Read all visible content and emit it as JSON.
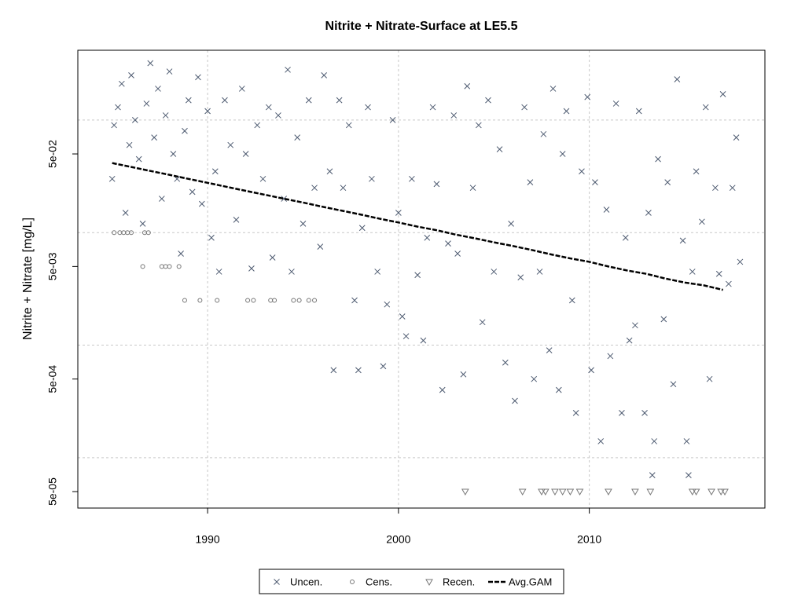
{
  "chart_data": {
    "type": "scatter",
    "title": "Nitrite + Nitrate-Surface at LE5.5",
    "y_label": "Nitrite + Nitrate [mg/L]",
    "log_y": true,
    "xlim": [
      1983.2,
      2019.2
    ],
    "ylim": [
      3.57e-05,
      0.417
    ],
    "xticks": [
      1990,
      2000,
      2010
    ],
    "yticks": [
      {
        "value": 5e-05,
        "label": "5e-05"
      },
      {
        "value": 0.0005,
        "label": "5e-04"
      },
      {
        "value": 0.005,
        "label": "5e-03"
      },
      {
        "value": 0.05,
        "label": "5e-02"
      }
    ],
    "ygrid": [
      0.0001,
      0.001,
      0.01,
      0.1
    ],
    "grid": true,
    "legend_position": "bottom",
    "series": [
      {
        "name": "Uncen.",
        "marker": "x",
        "color": "#4d5a70",
        "x": [
          1985.0,
          1985.1,
          1985.3,
          1985.5,
          1985.7,
          1985.9,
          1986.0,
          1986.2,
          1986.4,
          1986.6,
          1986.8,
          1987.0,
          1987.2,
          1987.4,
          1987.6,
          1987.8,
          1988.0,
          1988.2,
          1988.4,
          1988.6,
          1988.8,
          1989.0,
          1989.2,
          1989.5,
          1989.7,
          1990.0,
          1990.2,
          1990.4,
          1990.6,
          1990.9,
          1991.2,
          1991.5,
          1991.8,
          1992.0,
          1992.3,
          1992.6,
          1992.9,
          1993.2,
          1993.4,
          1993.7,
          1994.0,
          1994.2,
          1994.4,
          1994.7,
          1995.0,
          1995.3,
          1995.6,
          1995.9,
          1996.1,
          1996.4,
          1996.6,
          1996.9,
          1997.1,
          1997.4,
          1997.7,
          1997.9,
          1998.1,
          1998.4,
          1998.6,
          1998.9,
          1999.2,
          1999.4,
          1999.7,
          2000.0,
          2000.2,
          2000.4,
          2000.7,
          2001.0,
          2001.3,
          2001.5,
          2001.8,
          2002.0,
          2002.3,
          2002.6,
          2002.9,
          2003.1,
          2003.4,
          2003.6,
          2003.9,
          2004.2,
          2004.4,
          2004.7,
          2005.0,
          2005.3,
          2005.6,
          2005.9,
          2006.1,
          2006.4,
          2006.6,
          2006.9,
          2007.1,
          2007.4,
          2007.6,
          2007.9,
          2008.1,
          2008.4,
          2008.6,
          2008.8,
          2009.1,
          2009.3,
          2009.6,
          2009.9,
          2010.1,
          2010.3,
          2010.6,
          2010.9,
          2011.1,
          2011.4,
          2011.7,
          2011.9,
          2012.1,
          2012.4,
          2012.6,
          2012.9,
          2013.1,
          2013.4,
          2013.6,
          2013.9,
          2014.1,
          2014.4,
          2014.6,
          2014.9,
          2015.1,
          2015.4,
          2015.6,
          2015.9,
          2016.1,
          2016.3,
          2016.6,
          2016.8,
          2017.0,
          2017.3,
          2017.5,
          2017.7,
          2017.9,
          2013.3,
          2015.2
        ],
        "values": [
          0.03,
          0.09,
          0.13,
          0.21,
          0.015,
          0.06,
          0.25,
          0.1,
          0.045,
          0.012,
          0.14,
          0.32,
          0.07,
          0.19,
          0.02,
          0.11,
          0.27,
          0.05,
          0.03,
          0.0065,
          0.08,
          0.15,
          0.023,
          0.24,
          0.018,
          0.12,
          0.009,
          0.035,
          0.0045,
          0.15,
          0.06,
          0.013,
          0.19,
          0.05,
          0.0048,
          0.09,
          0.03,
          0.13,
          0.006,
          0.11,
          0.02,
          0.28,
          0.0045,
          0.07,
          0.012,
          0.15,
          0.025,
          0.0075,
          0.25,
          0.035,
          0.0006,
          0.15,
          0.025,
          0.09,
          0.0025,
          0.0006,
          0.011,
          0.13,
          0.03,
          0.0045,
          0.00065,
          0.0023,
          0.1,
          0.015,
          0.0018,
          0.0012,
          0.03,
          0.0042,
          0.0011,
          0.009,
          0.13,
          0.027,
          0.0004,
          0.008,
          0.11,
          0.0065,
          0.00055,
          0.2,
          0.025,
          0.09,
          0.0016,
          0.15,
          0.0045,
          0.055,
          0.0007,
          0.012,
          0.00032,
          0.004,
          0.13,
          0.028,
          0.0005,
          0.0045,
          0.075,
          0.0009,
          0.19,
          0.0004,
          0.05,
          0.12,
          0.0025,
          0.00025,
          0.035,
          0.16,
          0.0006,
          0.028,
          0.00014,
          0.016,
          0.0008,
          0.14,
          0.00025,
          0.009,
          0.0011,
          0.0015,
          0.12,
          0.00025,
          0.015,
          0.00014,
          0.045,
          0.0017,
          0.028,
          0.00045,
          0.23,
          0.0085,
          0.00014,
          0.0045,
          0.035,
          0.0125,
          0.13,
          0.0005,
          0.025,
          0.0043,
          0.17,
          0.0035,
          0.025,
          0.07,
          0.0055,
          7e-05,
          7e-05
        ]
      },
      {
        "name": "Cens.",
        "marker": "circle",
        "color": "#777777",
        "x": [
          1985.1,
          1985.4,
          1985.6,
          1985.8,
          1986.0,
          1986.7,
          1986.9,
          1986.6,
          1987.6,
          1987.8,
          1988.0,
          1988.5,
          1988.8,
          1989.6,
          1990.5,
          1992.1,
          1992.4,
          1993.3,
          1993.5,
          1994.5,
          1994.8,
          1995.3,
          1995.6
        ],
        "values": [
          0.01,
          0.01,
          0.01,
          0.01,
          0.01,
          0.01,
          0.01,
          0.005,
          0.005,
          0.005,
          0.005,
          0.005,
          0.0025,
          0.0025,
          0.0025,
          0.0025,
          0.0025,
          0.0025,
          0.0025,
          0.0025,
          0.0025,
          0.0025,
          0.0025
        ]
      },
      {
        "name": "Recen.",
        "marker": "triangle-down",
        "color": "#777777",
        "x": [
          2003.5,
          2006.5,
          2007.5,
          2007.7,
          2008.2,
          2008.6,
          2009.0,
          2009.5,
          2011.0,
          2012.4,
          2013.2,
          2015.4,
          2015.6,
          2016.4,
          2016.9,
          2017.1
        ],
        "values": [
          5e-05,
          5e-05,
          5e-05,
          5e-05,
          5e-05,
          5e-05,
          5e-05,
          5e-05,
          5e-05,
          5e-05,
          5e-05,
          5e-05,
          5e-05,
          5e-05,
          5e-05,
          5e-05
        ]
      },
      {
        "name": "Avg.GAM",
        "marker": "dashed-line",
        "color": "#000000",
        "x": [
          1985,
          1986,
          1987,
          1988,
          1989,
          1990,
          1991,
          1992,
          1993,
          1994,
          1995,
          1996,
          1997,
          1998,
          1999,
          2000,
          2001,
          2002,
          2003,
          2004,
          2005,
          2006,
          2007,
          2008,
          2009,
          2010,
          2011,
          2012,
          2013,
          2014,
          2015,
          2016,
          2017
        ],
        "values": [
          0.0415,
          0.0383,
          0.0353,
          0.0326,
          0.03,
          0.0277,
          0.0255,
          0.0235,
          0.0217,
          0.02,
          0.0185,
          0.017,
          0.0157,
          0.0145,
          0.0133,
          0.0123,
          0.0113,
          0.0105,
          0.0096,
          0.0089,
          0.0082,
          0.0076,
          0.007,
          0.0064,
          0.0059,
          0.0055,
          0.005,
          0.0046,
          0.0043,
          0.0039,
          0.0036,
          0.0034,
          0.0031
        ]
      }
    ]
  }
}
